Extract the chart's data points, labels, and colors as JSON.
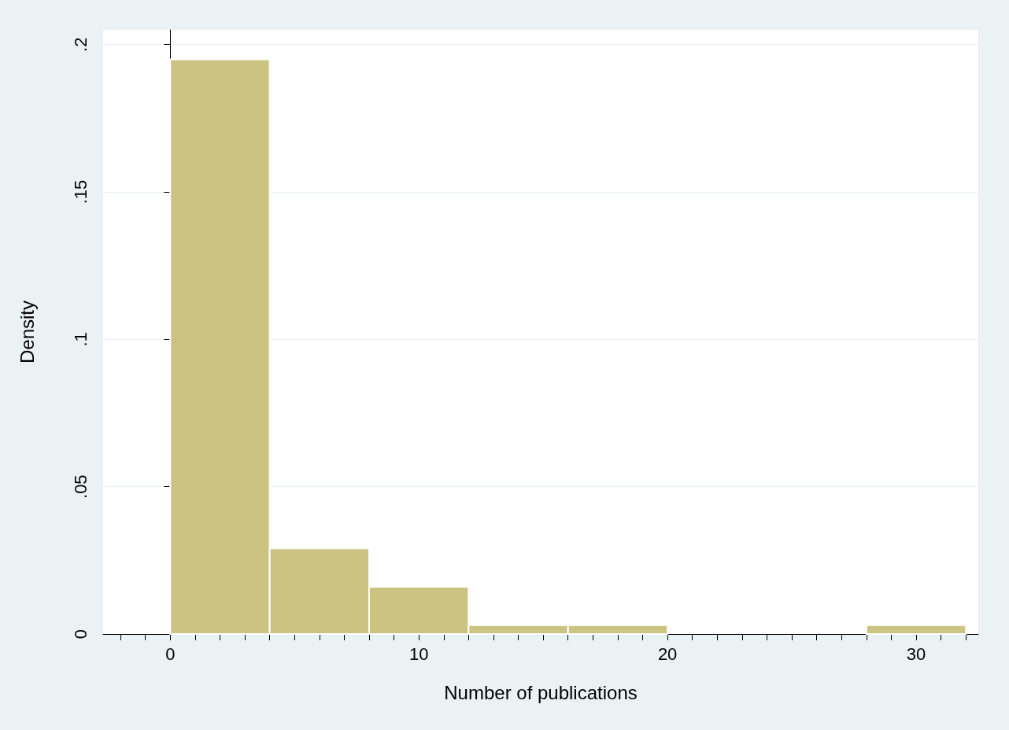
{
  "chart_data": {
    "type": "histogram",
    "xlabel": "Number of publications",
    "ylabel": "Density",
    "bins": [
      0,
      4,
      8,
      12,
      16,
      20,
      24,
      28,
      32
    ],
    "values": [
      0.195,
      0.029,
      0.016,
      0.003,
      0.003,
      0,
      0,
      0.003
    ],
    "color": "#cbc382",
    "xlim": [
      -2.7,
      32.5
    ],
    "xticks": [
      {
        "value": -2,
        "label": null
      },
      {
        "value": -1,
        "label": null
      },
      0,
      {
        "value": 1,
        "label": null
      },
      {
        "value": 2,
        "label": null
      },
      {
        "value": 3,
        "label": null
      },
      {
        "value": 4,
        "label": null
      },
      {
        "value": 5,
        "label": null
      },
      {
        "value": 6,
        "label": null
      },
      {
        "value": 7,
        "label": null
      },
      {
        "value": 8,
        "label": null
      },
      {
        "value": 9,
        "label": null
      },
      10,
      {
        "value": 11,
        "label": null
      },
      {
        "value": 12,
        "label": null
      },
      {
        "value": 13,
        "label": null
      },
      {
        "value": 14,
        "label": null
      },
      {
        "value": 15,
        "label": null
      },
      {
        "value": 16,
        "label": null
      },
      {
        "value": 17,
        "label": null
      },
      {
        "value": 18,
        "label": null
      },
      {
        "value": 19,
        "label": null
      },
      20,
      {
        "value": 21,
        "label": null
      },
      {
        "value": 22,
        "label": null
      },
      {
        "value": 23,
        "label": null
      },
      {
        "value": 24,
        "label": null
      },
      {
        "value": 25,
        "label": null
      },
      {
        "value": 26,
        "label": null
      },
      {
        "value": 27,
        "label": null
      },
      {
        "value": 28,
        "label": null
      },
      {
        "value": 29,
        "label": null
      },
      30,
      {
        "value": 31,
        "label": null
      },
      {
        "value": 32,
        "label": null
      }
    ],
    "ylim": [
      0,
      0.205
    ],
    "yticks": [
      0,
      {
        "value": 0.05,
        "label": ".05"
      },
      {
        "value": 0.1,
        "label": ".1"
      },
      {
        "value": 0.15,
        "label": ".15"
      },
      {
        "value": 0.2,
        "label": ".2"
      }
    ],
    "grid": "y"
  }
}
